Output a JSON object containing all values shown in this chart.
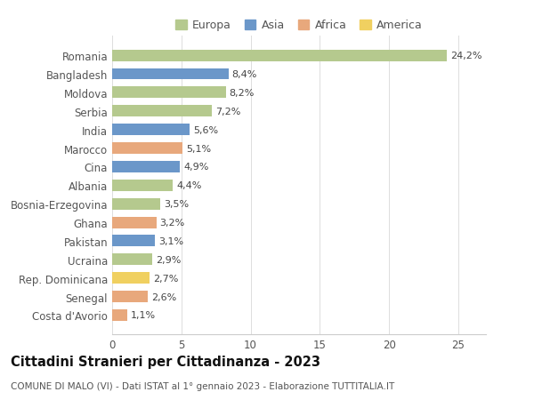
{
  "categories": [
    "Costa d'Avorio",
    "Senegal",
    "Rep. Dominicana",
    "Ucraina",
    "Pakistan",
    "Ghana",
    "Bosnia-Erzegovina",
    "Albania",
    "Cina",
    "Marocco",
    "India",
    "Serbia",
    "Moldova",
    "Bangladesh",
    "Romania"
  ],
  "values": [
    1.1,
    2.6,
    2.7,
    2.9,
    3.1,
    3.2,
    3.5,
    4.4,
    4.9,
    5.1,
    5.6,
    7.2,
    8.2,
    8.4,
    24.2
  ],
  "labels": [
    "1,1%",
    "2,6%",
    "2,7%",
    "2,9%",
    "3,1%",
    "3,2%",
    "3,5%",
    "4,4%",
    "4,9%",
    "5,1%",
    "5,6%",
    "7,2%",
    "8,2%",
    "8,4%",
    "24,2%"
  ],
  "continents": [
    "Africa",
    "Africa",
    "America",
    "Europa",
    "Asia",
    "Africa",
    "Europa",
    "Europa",
    "Asia",
    "Africa",
    "Asia",
    "Europa",
    "Europa",
    "Asia",
    "Europa"
  ],
  "colors": {
    "Europa": "#b5c98e",
    "Asia": "#6b97c9",
    "Africa": "#e8a87c",
    "America": "#f0d060"
  },
  "title": "Cittadini Stranieri per Cittadinanza - 2023",
  "subtitle": "COMUNE DI MALO (VI) - Dati ISTAT al 1° gennaio 2023 - Elaborazione TUTTITALIA.IT",
  "xlim": [
    0,
    27
  ],
  "xticks": [
    0,
    5,
    10,
    15,
    20,
    25
  ],
  "background_color": "#ffffff",
  "bar_height": 0.62,
  "label_fontsize": 8,
  "tick_fontsize": 8.5,
  "title_fontsize": 10.5,
  "subtitle_fontsize": 7.5,
  "legend_order": [
    "Europa",
    "Asia",
    "Africa",
    "America"
  ]
}
